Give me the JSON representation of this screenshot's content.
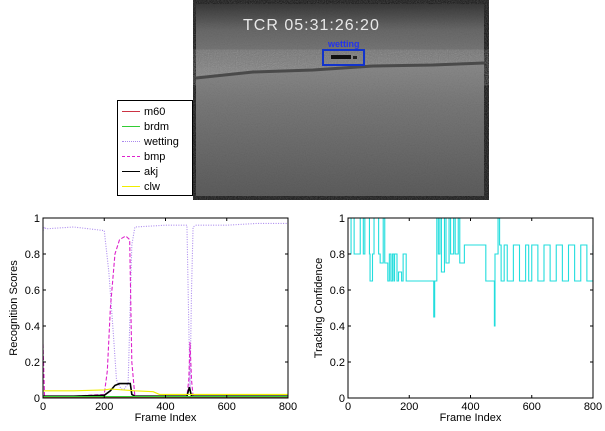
{
  "video": {
    "timecode": "TCR 05:31:26:20",
    "target_label": "wetting"
  },
  "legend": [
    {
      "name": "m60",
      "color": "#cc3344",
      "style": "solid"
    },
    {
      "name": "brdm",
      "color": "#33cc33",
      "style": "solid"
    },
    {
      "name": "wetting",
      "color": "#aa88ee",
      "style": "dotted"
    },
    {
      "name": "bmp",
      "color": "#dd22cc",
      "style": "dashed"
    },
    {
      "name": "akj",
      "color": "#000000",
      "style": "solid"
    },
    {
      "name": "clw",
      "color": "#eeee00",
      "style": "solid"
    }
  ],
  "chart_data": [
    {
      "type": "line",
      "xlabel": "Frame Index",
      "ylabel": "Recognition Scores",
      "xlim": [
        0,
        800
      ],
      "ylim": [
        0,
        1
      ],
      "xticks": [
        "0",
        "200",
        "400",
        "600",
        "800"
      ],
      "yticks": [
        "0",
        "0.2",
        "0.4",
        "0.6",
        "0.8",
        "1"
      ],
      "series": [
        {
          "name": "wetting",
          "color": "#aa88ee",
          "style": "dotted",
          "x": [
            0,
            5,
            10,
            100,
            200,
            215,
            230,
            240,
            255,
            265,
            278,
            290,
            300,
            400,
            470,
            475,
            480,
            485,
            490,
            500,
            600,
            700,
            800
          ],
          "y": [
            0.93,
            0.95,
            0.94,
            0.95,
            0.93,
            0.7,
            0.35,
            0.1,
            0.05,
            0.05,
            0.08,
            0.85,
            0.95,
            0.96,
            0.96,
            0.5,
            0.05,
            0.6,
            0.95,
            0.96,
            0.96,
            0.97,
            0.97
          ]
        },
        {
          "name": "bmp",
          "color": "#dd22cc",
          "style": "dashed",
          "x": [
            0,
            5,
            10,
            100,
            200,
            210,
            220,
            235,
            250,
            270,
            283,
            290,
            300,
            470,
            476,
            480,
            485,
            490,
            800
          ],
          "y": [
            0.3,
            0.01,
            0.01,
            0.01,
            0.02,
            0.15,
            0.5,
            0.8,
            0.88,
            0.9,
            0.88,
            0.2,
            0.01,
            0.01,
            0.1,
            0.31,
            0.1,
            0.01,
            0.01
          ]
        },
        {
          "name": "akj",
          "color": "#000000",
          "style": "solid",
          "x": [
            0,
            100,
            200,
            220,
            235,
            250,
            285,
            290,
            300,
            470,
            478,
            485,
            800
          ],
          "y": [
            0.01,
            0.01,
            0.015,
            0.04,
            0.07,
            0.08,
            0.08,
            0.02,
            0.01,
            0.01,
            0.06,
            0.01,
            0.01
          ]
        },
        {
          "name": "clw",
          "color": "#eeee00",
          "style": "solid",
          "x": [
            0,
            100,
            200,
            220,
            300,
            360,
            380,
            800
          ],
          "y": [
            0.04,
            0.04,
            0.045,
            0.05,
            0.04,
            0.035,
            0.02,
            0.02
          ]
        },
        {
          "name": "m60",
          "color": "#cc3344",
          "style": "solid",
          "x": [
            0,
            800
          ],
          "y": [
            0.005,
            0.005
          ]
        },
        {
          "name": "brdm",
          "color": "#33cc33",
          "style": "solid",
          "x": [
            0,
            800
          ],
          "y": [
            0.008,
            0.008
          ]
        }
      ]
    },
    {
      "type": "line",
      "xlabel": "Frame Index",
      "ylabel": "Tracking Confidence",
      "xlim": [
        0,
        800
      ],
      "ylim": [
        0,
        1
      ],
      "xticks": [
        "0",
        "200",
        "400",
        "600",
        "800"
      ],
      "yticks": [
        "0",
        "0.2",
        "0.4",
        "0.6",
        "0.8",
        "1"
      ],
      "series": [
        {
          "name": "",
          "color": "#22dddd",
          "style": "step",
          "x": [
            0,
            10,
            20,
            40,
            50,
            55,
            70,
            72,
            80,
            85,
            100,
            105,
            115,
            120,
            130,
            135,
            140,
            145,
            150,
            152,
            160,
            165,
            175,
            180,
            190,
            195,
            270,
            280,
            283,
            290,
            295,
            300,
            305,
            315,
            320,
            330,
            335,
            345,
            350,
            360,
            365,
            380,
            395,
            430,
            450,
            455,
            470,
            478,
            480,
            490,
            495,
            500,
            510,
            520,
            540,
            560,
            580,
            590,
            600,
            620,
            640,
            660,
            680,
            700,
            720,
            740,
            760,
            780,
            800
          ],
          "y": [
            0.8,
            1.0,
            0.8,
            1.0,
            0.8,
            1.0,
            0.8,
            0.65,
            0.8,
            1.0,
            0.8,
            0.75,
            1.0,
            0.75,
            0.65,
            0.8,
            0.65,
            0.8,
            0.65,
            0.8,
            0.65,
            0.7,
            0.65,
            0.8,
            0.65,
            0.65,
            0.65,
            0.45,
            0.65,
            1.0,
            0.8,
            1.0,
            0.7,
            1.0,
            0.75,
            1.0,
            0.8,
            1.0,
            0.8,
            1.0,
            0.75,
            0.85,
            0.85,
            0.85,
            0.65,
            0.65,
            0.65,
            0.4,
            0.8,
            1.0,
            0.85,
            0.65,
            0.85,
            0.65,
            0.85,
            0.65,
            0.85,
            0.65,
            0.85,
            0.65,
            0.85,
            0.65,
            0.85,
            0.65,
            0.85,
            0.65,
            0.85,
            0.65,
            0.85
          ]
        }
      ]
    }
  ]
}
